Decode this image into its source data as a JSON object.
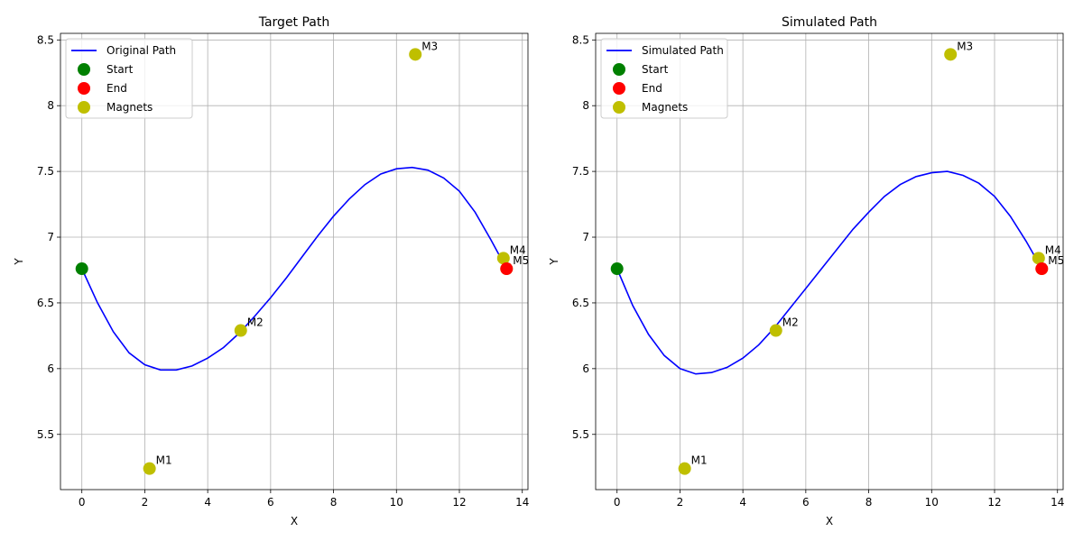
{
  "chart_data": [
    {
      "type": "line",
      "title": "Target Path",
      "xlabel": "X",
      "ylabel": "Y",
      "xlim": [
        -0.68,
        14.18
      ],
      "ylim": [
        5.08,
        8.55
      ],
      "xticks": [
        0,
        2,
        4,
        6,
        8,
        10,
        12,
        14
      ],
      "yticks": [
        5.5,
        6.0,
        6.5,
        7.0,
        7.5,
        8.0,
        8.5
      ],
      "grid": true,
      "legend_position": "top-left",
      "legend": [
        "Original Path",
        "Start",
        "End",
        "Magnets"
      ],
      "path": {
        "name": "Original Path",
        "color": "#0000ff",
        "x": [
          0,
          0.5,
          1,
          1.5,
          2,
          2.5,
          3,
          3.5,
          4,
          4.5,
          5,
          5.5,
          6,
          6.5,
          7,
          7.5,
          8,
          8.5,
          9,
          9.5,
          10,
          10.5,
          11,
          11.5,
          12,
          12.5,
          13,
          13.5
        ],
        "y": [
          6.76,
          6.5,
          6.28,
          6.12,
          6.03,
          5.99,
          5.99,
          6.02,
          6.08,
          6.16,
          6.27,
          6.4,
          6.54,
          6.69,
          6.85,
          7.01,
          7.16,
          7.29,
          7.4,
          7.48,
          7.52,
          7.53,
          7.51,
          7.45,
          7.35,
          7.19,
          6.98,
          6.76
        ]
      },
      "start": {
        "name": "Start",
        "x": 0,
        "y": 6.76,
        "color": "#008000"
      },
      "end": {
        "name": "End",
        "x": 13.5,
        "y": 6.76,
        "color": "#ff0000"
      },
      "magnets": {
        "name": "Magnets",
        "color": "#bfbf00",
        "points": [
          {
            "label": "M1",
            "x": 2.15,
            "y": 5.24
          },
          {
            "label": "M2",
            "x": 5.05,
            "y": 6.29
          },
          {
            "label": "M3",
            "x": 10.6,
            "y": 8.39
          },
          {
            "label": "M4",
            "x": 13.4,
            "y": 6.84
          },
          {
            "label": "M5",
            "x": 13.5,
            "y": 6.76
          }
        ]
      }
    },
    {
      "type": "line",
      "title": "Simulated Path",
      "xlabel": "X",
      "ylabel": "Y",
      "xlim": [
        -0.68,
        14.18
      ],
      "ylim": [
        5.08,
        8.55
      ],
      "xticks": [
        0,
        2,
        4,
        6,
        8,
        10,
        12,
        14
      ],
      "yticks": [
        5.5,
        6.0,
        6.5,
        7.0,
        7.5,
        8.0,
        8.5
      ],
      "grid": true,
      "legend_position": "top-left",
      "legend": [
        "Simulated Path",
        "Start",
        "End",
        "Magnets"
      ],
      "path": {
        "name": "Simulated Path",
        "color": "#0000ff",
        "x": [
          0,
          0.5,
          1,
          1.5,
          2,
          2.5,
          3,
          3.5,
          4,
          4.5,
          5,
          5.5,
          6,
          6.5,
          7,
          7.5,
          8,
          8.5,
          9,
          9.5,
          10,
          10.5,
          11,
          11.5,
          12,
          12.5,
          13,
          13.5
        ],
        "y": [
          6.76,
          6.48,
          6.26,
          6.1,
          6.0,
          5.96,
          5.97,
          6.01,
          6.08,
          6.18,
          6.31,
          6.46,
          6.61,
          6.76,
          6.91,
          7.06,
          7.19,
          7.31,
          7.4,
          7.46,
          7.49,
          7.5,
          7.47,
          7.41,
          7.31,
          7.16,
          6.97,
          6.76
        ]
      },
      "start": {
        "name": "Start",
        "x": 0,
        "y": 6.76,
        "color": "#008000"
      },
      "end": {
        "name": "End",
        "x": 13.5,
        "y": 6.76,
        "color": "#ff0000"
      },
      "magnets": {
        "name": "Magnets",
        "color": "#bfbf00",
        "points": [
          {
            "label": "M1",
            "x": 2.15,
            "y": 5.24
          },
          {
            "label": "M2",
            "x": 5.05,
            "y": 6.29
          },
          {
            "label": "M3",
            "x": 10.6,
            "y": 8.39
          },
          {
            "label": "M4",
            "x": 13.4,
            "y": 6.84
          },
          {
            "label": "M5",
            "x": 13.5,
            "y": 6.76
          }
        ]
      }
    }
  ]
}
